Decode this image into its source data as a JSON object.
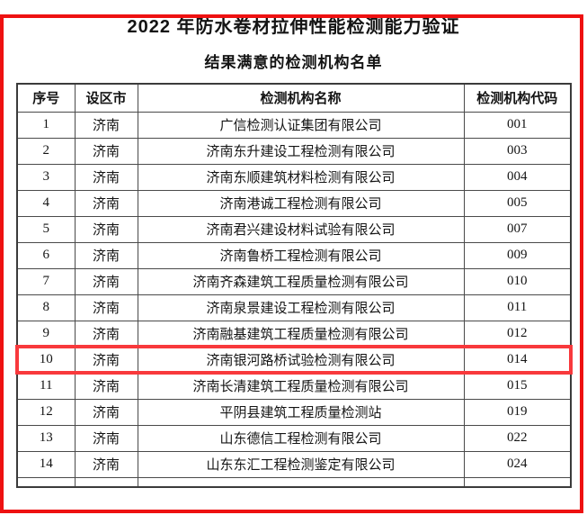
{
  "page": {
    "title": "2022 年防水卷材拉伸性能检测能力验证",
    "subtitle": "结果满意的检测机构名单"
  },
  "table": {
    "columns": [
      "序号",
      "设区市",
      "检测机构名称",
      "检测机构代码"
    ],
    "rows": [
      {
        "no": "1",
        "city": "济南",
        "name": "广信检测认证集团有限公司",
        "code": "001"
      },
      {
        "no": "2",
        "city": "济南",
        "name": "济南东升建设工程检测有限公司",
        "code": "003"
      },
      {
        "no": "3",
        "city": "济南",
        "name": "济南东顺建筑材料检测有限公司",
        "code": "004"
      },
      {
        "no": "4",
        "city": "济南",
        "name": "济南港诚工程检测有限公司",
        "code": "005"
      },
      {
        "no": "5",
        "city": "济南",
        "name": "济南君兴建设材料试验有限公司",
        "code": "007"
      },
      {
        "no": "6",
        "city": "济南",
        "name": "济南鲁桥工程检测有限公司",
        "code": "009"
      },
      {
        "no": "7",
        "city": "济南",
        "name": "济南齐森建筑工程质量检测有限公司",
        "code": "010"
      },
      {
        "no": "8",
        "city": "济南",
        "name": "济南泉景建设工程检测有限公司",
        "code": "011"
      },
      {
        "no": "9",
        "city": "济南",
        "name": "济南融基建筑工程质量检测有限公司",
        "code": "012"
      },
      {
        "no": "10",
        "city": "济南",
        "name": "济南银河路桥试验检测有限公司",
        "code": "014"
      },
      {
        "no": "11",
        "city": "济南",
        "name": "济南长清建筑工程质量检测有限公司",
        "code": "015"
      },
      {
        "no": "12",
        "city": "济南",
        "name": "平阴县建筑工程质量检测站",
        "code": "019"
      },
      {
        "no": "13",
        "city": "济南",
        "name": "山东德信工程检测有限公司",
        "code": "022"
      },
      {
        "no": "14",
        "city": "济南",
        "name": "山东东汇工程检测鉴定有限公司",
        "code": "024"
      }
    ],
    "highlighted_row_no": "10"
  },
  "colors": {
    "frame_red": "#ee1111",
    "highlight_red": "#f8393c",
    "border_gray": "#4a4a4a",
    "outer_border": "#3b3b3b"
  }
}
